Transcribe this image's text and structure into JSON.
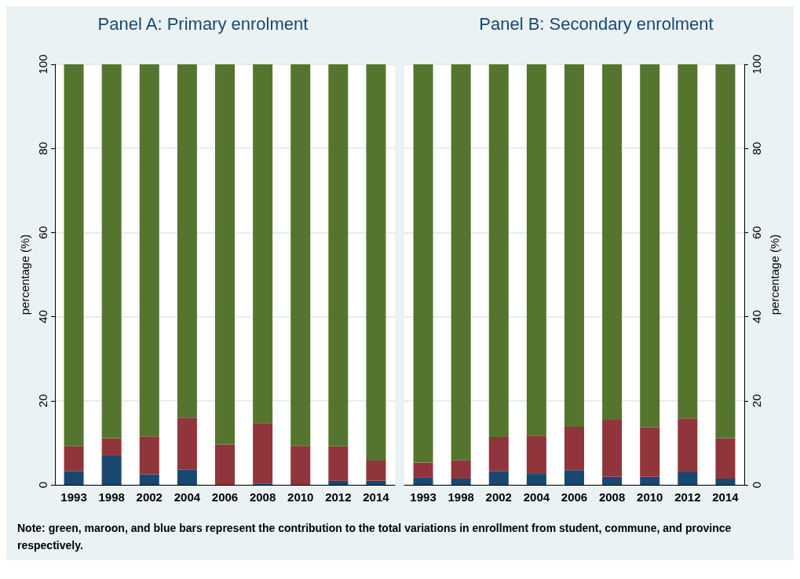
{
  "chart_data": [
    {
      "type": "bar",
      "title": "Panel A: Primary enrolment",
      "ylabel": "percentage (%)",
      "categories": [
        "1993",
        "1998",
        "2002",
        "2004",
        "2006",
        "2008",
        "2010",
        "2012",
        "2014"
      ],
      "stacked": true,
      "ylim": [
        0,
        100
      ],
      "yticks": [
        0,
        20,
        40,
        60,
        80,
        100
      ],
      "grid": "y",
      "series": [
        {
          "color": "#1a476f",
          "values": [
            3.3,
            6.9,
            2.5,
            3.6,
            0,
            0.3,
            0,
            1.0,
            1.0
          ]
        },
        {
          "color": "#90353b",
          "values": [
            5.9,
            4.2,
            9.0,
            12.4,
            9.6,
            14.4,
            9.3,
            8.2,
            4.8
          ]
        },
        {
          "color": "#55752f",
          "values": [
            90.8,
            88.9,
            88.5,
            84.0,
            90.4,
            85.3,
            90.7,
            90.8,
            94.2
          ]
        }
      ],
      "annotations": [
        "Note: green, maroon, and blue bars represent the contribution to the total variations in enrollment from student, commune, and province respectively."
      ]
    },
    {
      "type": "bar",
      "title": "Panel B: Secondary enrolment",
      "ylabel": "percentage (%)",
      "categories": [
        "1993",
        "1998",
        "2002",
        "2004",
        "2006",
        "2008",
        "2010",
        "2012",
        "2014"
      ],
      "stacked": true,
      "ylim": [
        0,
        100
      ],
      "yticks": [
        0,
        20,
        40,
        60,
        80,
        100
      ],
      "grid": "y",
      "series": [
        {
          "color": "#1a476f",
          "values": [
            1.7,
            1.5,
            3.3,
            2.6,
            3.5,
            1.9,
            1.9,
            3.0,
            1.5
          ]
        },
        {
          "color": "#90353b",
          "values": [
            3.6,
            4.4,
            8.1,
            9.1,
            10.3,
            13.6,
            11.8,
            12.8,
            9.6
          ]
        },
        {
          "color": "#55752f",
          "values": [
            94.7,
            94.1,
            88.6,
            88.3,
            86.2,
            84.5,
            86.3,
            84.2,
            88.9
          ]
        }
      ]
    }
  ]
}
